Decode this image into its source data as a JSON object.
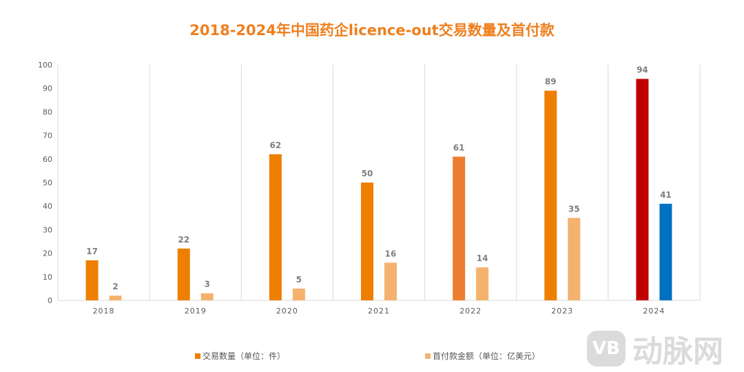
{
  "chart_data": {
    "type": "bar",
    "title": "2018-2024年中国药企licence-out交易数量及首付款",
    "categories": [
      "2018",
      "2019",
      "2020",
      "2021",
      "2022",
      "2023",
      "2024"
    ],
    "series": [
      {
        "name": "交易数量（单位：件）",
        "values": [
          17,
          22,
          62,
          50,
          61,
          89,
          94
        ],
        "color": "#EE7F00",
        "point_colors": [
          "#EE7F00",
          "#EE7F00",
          "#EE7F00",
          "#EE7F00",
          "#ED7D31",
          "#EE7F00",
          "#C00000"
        ]
      },
      {
        "name": "首付款金额（单位：亿美元）",
        "values": [
          2,
          3,
          5,
          16,
          14,
          35,
          41
        ],
        "color": "#F4B26E",
        "point_colors": [
          "#F4B26E",
          "#F4B26E",
          "#F4B26E",
          "#F4B26E",
          "#F4B26E",
          "#F4B26E",
          "#0070C0"
        ]
      }
    ],
    "ylim": [
      0,
      100
    ],
    "yticks": [
      0,
      10,
      20,
      30,
      40,
      50,
      60,
      70,
      80,
      90,
      100
    ],
    "grid": "vertical category separators",
    "legend": "bottom",
    "xlabel": "",
    "ylabel": ""
  },
  "watermark": {
    "logo": "VB",
    "text": "动脉网"
  }
}
